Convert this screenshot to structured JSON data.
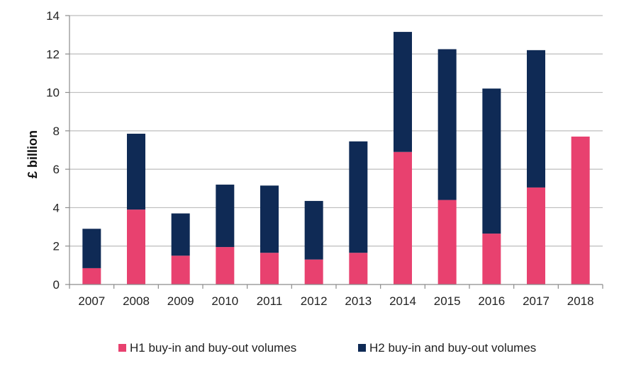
{
  "chart_data": {
    "type": "bar",
    "stacked": true,
    "ylabel": "£ billion",
    "xlabel": "",
    "ylim": [
      0,
      14
    ],
    "yticks": [
      0,
      2,
      4,
      6,
      8,
      10,
      12,
      14
    ],
    "grid": true,
    "legend_position": "bottom",
    "categories": [
      "2007",
      "2008",
      "2009",
      "2010",
      "2011",
      "2012",
      "2013",
      "2014",
      "2015",
      "2016",
      "2017",
      "2018"
    ],
    "series": [
      {
        "name": "H1 buy-in and buy-out volumes",
        "color": "#e8416f",
        "values": [
          0.85,
          3.9,
          1.5,
          1.95,
          1.65,
          1.3,
          1.65,
          6.9,
          4.4,
          2.65,
          5.05,
          7.7
        ]
      },
      {
        "name": "H2 buy-in and buy-out volumes",
        "color": "#0f2a55",
        "values": [
          2.05,
          3.95,
          2.2,
          3.25,
          3.5,
          3.05,
          5.8,
          6.25,
          7.85,
          7.55,
          7.15,
          0
        ]
      }
    ]
  }
}
